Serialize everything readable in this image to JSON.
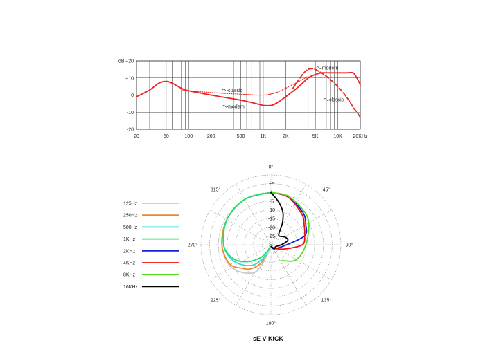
{
  "chart_data": [
    {
      "type": "line",
      "ylabel": "dB",
      "x_scale": "log",
      "xlim": [
        20,
        20000
      ],
      "ylim": [
        -20,
        20
      ],
      "x_ticks": [
        {
          "v": 20,
          "t": "20"
        },
        {
          "v": 50,
          "t": "50"
        },
        {
          "v": 100,
          "t": "100"
        },
        {
          "v": 200,
          "t": "200"
        },
        {
          "v": 500,
          "t": "500"
        },
        {
          "v": 1000,
          "t": "1K"
        },
        {
          "v": 2000,
          "t": "2K"
        },
        {
          "v": 5000,
          "t": "5K"
        },
        {
          "v": 10000,
          "t": "10K"
        },
        {
          "v": 20000,
          "t": "20KHz"
        }
      ],
      "y_ticks": [
        {
          "v": 20,
          "t": "+20"
        },
        {
          "v": 10,
          "t": "+10"
        },
        {
          "v": 0,
          "t": "0"
        },
        {
          "v": -10,
          "t": "-10"
        },
        {
          "v": -20,
          "t": "-20"
        }
      ],
      "grid": true,
      "series": [
        {
          "name": "modern",
          "color": "#ee2222",
          "dash": "solid",
          "x": [
            20,
            30,
            40,
            50,
            60,
            80,
            100,
            200,
            500,
            800,
            1000,
            1300,
            1600,
            2000,
            3000,
            4000,
            5000,
            6000,
            8000,
            10000,
            13000,
            16000,
            18000,
            20000
          ],
          "y": [
            -1,
            3,
            7,
            8,
            7,
            4,
            2.5,
            0,
            -3,
            -5,
            -6,
            -6,
            -4,
            -1,
            5,
            10,
            12,
            13,
            13,
            13,
            13,
            13,
            10,
            6
          ]
        },
        {
          "name": "modern",
          "color": "#ee2222",
          "dash": "dash",
          "x": [
            2500,
            3000,
            3500,
            4000,
            4500,
            5000,
            6000,
            7000,
            8000,
            10000,
            12000,
            14000,
            16000,
            18000,
            20000
          ],
          "y": [
            4,
            9,
            13,
            15,
            15.5,
            15,
            13,
            11,
            9,
            5,
            1,
            -3,
            -7,
            -10,
            -13
          ]
        },
        {
          "name": "classic",
          "color": "#ee2222",
          "dash": "dot",
          "x": [
            80,
            100,
            200,
            500,
            1000,
            1500,
            2000,
            3000,
            4000
          ],
          "y": [
            3,
            2.5,
            1.5,
            0.5,
            0,
            1.5,
            4,
            8,
            11
          ]
        }
      ],
      "annotations": [
        {
          "text": "classic",
          "x": 330,
          "y": 2.5
        },
        {
          "text": "modern",
          "x": 330,
          "y": -7
        },
        {
          "text": "modern",
          "x": 6000,
          "y": 15.5
        },
        {
          "text": "classic",
          "x": 7500,
          "y": -3
        }
      ]
    },
    {
      "type": "polar",
      "title": "sE V KICK",
      "r_ticks": [
        {
          "v": 5,
          "t": "+5"
        },
        {
          "v": 0,
          "t": "0"
        },
        {
          "v": -5,
          "t": "-5"
        },
        {
          "v": -10,
          "t": "-10"
        },
        {
          "v": -15,
          "t": "-15"
        },
        {
          "v": -20,
          "t": "-20"
        },
        {
          "v": -25,
          "t": "-25"
        }
      ],
      "r_range": [
        -30,
        10
      ],
      "angle_labels": [
        {
          "deg": 0,
          "t": "0°"
        },
        {
          "deg": 45,
          "t": "45°"
        },
        {
          "deg": 90,
          "t": "90°"
        },
        {
          "deg": 135,
          "t": "135°"
        },
        {
          "deg": 180,
          "t": "180°"
        },
        {
          "deg": 225,
          "t": "225°"
        },
        {
          "deg": 270,
          "t": "270°"
        },
        {
          "deg": 315,
          "t": "315°"
        }
      ],
      "series": [
        {
          "name": "125Hz",
          "color": "#c8c8c8",
          "side": "left",
          "points": [
            [
              0,
              0
            ],
            [
              30,
              0
            ],
            [
              60,
              -1
            ],
            [
              90,
              -2
            ],
            [
              120,
              -4
            ],
            [
              150,
              -12
            ],
            [
              175,
              -28
            ]
          ]
        },
        {
          "name": "250Hz",
          "color": "#f08a24",
          "side": "left",
          "points": [
            [
              0,
              0
            ],
            [
              30,
              0
            ],
            [
              60,
              -1
            ],
            [
              90,
              -2
            ],
            [
              115,
              -4
            ],
            [
              130,
              -9
            ],
            [
              140,
              -12
            ],
            [
              150,
              -17
            ],
            [
              155,
              -21
            ]
          ]
        },
        {
          "name": "500Hz",
          "color": "#22dde4",
          "side": "left",
          "points": [
            [
              0,
              0
            ],
            [
              30,
              0
            ],
            [
              60,
              -1
            ],
            [
              90,
              -3
            ],
            [
              110,
              -6
            ],
            [
              125,
              -10
            ],
            [
              140,
              -15
            ],
            [
              150,
              -21
            ],
            [
              157,
              -24
            ]
          ]
        },
        {
          "name": "1KHz",
          "color": "#22dd66",
          "side": "left",
          "points": [
            [
              0,
              0
            ],
            [
              30,
              0
            ],
            [
              60,
              -1
            ],
            [
              90,
              -3
            ],
            [
              110,
              -7
            ],
            [
              125,
              -13
            ],
            [
              140,
              -20
            ],
            [
              150,
              -25
            ],
            [
              158,
              -29
            ]
          ]
        },
        {
          "name": "2KHz",
          "color": "#1122dd",
          "side": "right",
          "points": [
            [
              0,
              0
            ],
            [
              20,
              -1
            ],
            [
              45,
              -4
            ],
            [
              60,
              -7
            ],
            [
              75,
              -10
            ],
            [
              90,
              -21
            ],
            [
              140,
              -27
            ],
            [
              170,
              -29
            ]
          ]
        },
        {
          "name": "4KHz",
          "color": "#ee1111",
          "side": "right",
          "points": [
            [
              0,
              0
            ],
            [
              20,
              -1
            ],
            [
              45,
              -5
            ],
            [
              60,
              -8
            ],
            [
              75,
              -10
            ],
            [
              90,
              -12
            ],
            [
              105,
              -21
            ],
            [
              125,
              -26
            ],
            [
              145,
              -28
            ],
            [
              170,
              -29
            ]
          ]
        },
        {
          "name": "8KHz",
          "color": "#55dd22",
          "side": "right",
          "points": [
            [
              0,
              0
            ],
            [
              20,
              -0.5
            ],
            [
              45,
              -3
            ],
            [
              60,
              -5
            ],
            [
              75,
              -8
            ],
            [
              90,
              -10
            ],
            [
              110,
              -12
            ],
            [
              125,
              -14
            ],
            [
              140,
              -18
            ],
            [
              145,
              -19
            ]
          ]
        },
        {
          "name": "16KHz",
          "color": "#000000",
          "side": "right",
          "points": [
            [
              0,
              0
            ],
            [
              10,
              -5
            ],
            [
              20,
              -10
            ],
            [
              28,
              -16
            ],
            [
              35,
              -22
            ],
            [
              45,
              -23
            ],
            [
              60,
              -21
            ],
            [
              75,
              -20
            ],
            [
              90,
              -24
            ],
            [
              110,
              -27
            ],
            [
              140,
              -27
            ],
            [
              170,
              -29
            ]
          ]
        }
      ]
    }
  ]
}
